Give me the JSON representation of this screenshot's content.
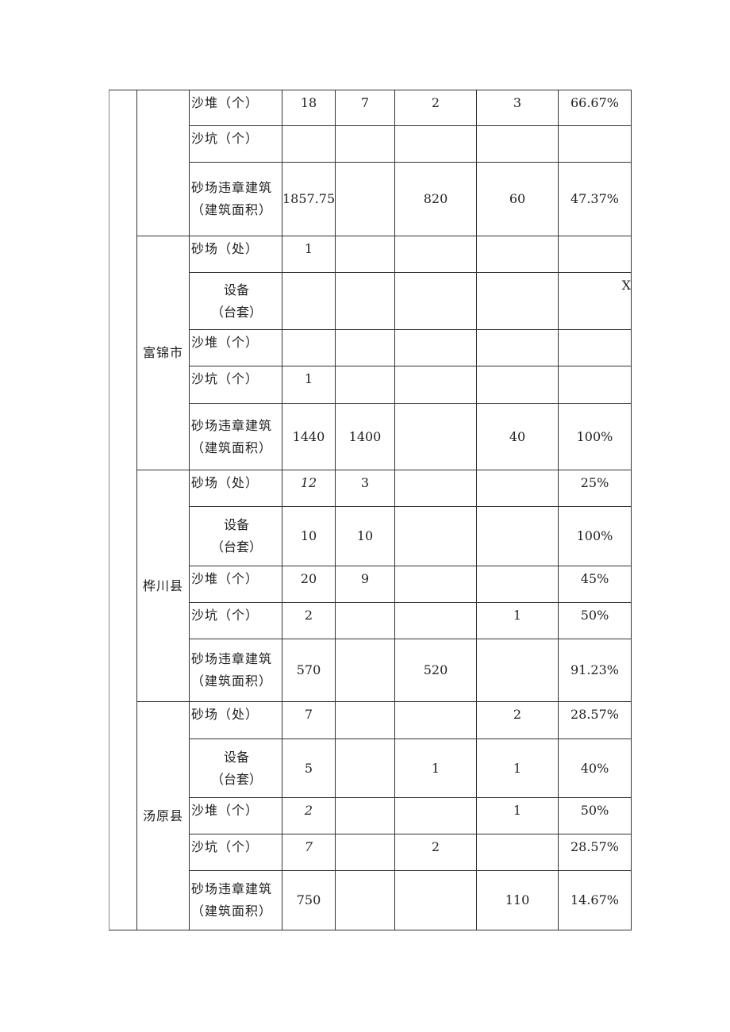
{
  "table": {
    "groups": [
      {
        "region": "",
        "rows": [
          {
            "label": "沙堆（个）",
            "values": [
              "18",
              "7",
              "2",
              "3",
              "66.67%"
            ]
          },
          {
            "label": "沙坑（个）",
            "values": [
              "",
              "",
              "",
              "",
              ""
            ]
          },
          {
            "label": "砂场违章建筑（建筑面积）",
            "label_lines": [
              "砂场违章建筑",
              "（建筑面积）"
            ],
            "values": [
              "1857.75",
              "",
              "820",
              "60",
              "47.37%"
            ]
          }
        ]
      },
      {
        "region": "富锦市",
        "rows": [
          {
            "label": "砂场（处）",
            "values": [
              "1",
              "",
              "",
              "",
              ""
            ]
          },
          {
            "label": "设备（台套）",
            "label_lines": [
              "设备",
              "（台套）"
            ],
            "values": [
              "",
              "",
              "",
              "",
              "X"
            ]
          },
          {
            "label": "沙堆（个）",
            "values": [
              "",
              "",
              "",
              "",
              ""
            ]
          },
          {
            "label": "沙坑（个）",
            "values": [
              "1",
              "",
              "",
              "",
              ""
            ]
          },
          {
            "label": "砂场违章建筑（建筑面积）",
            "label_lines": [
              "砂场违章建筑",
              "（建筑面积）"
            ],
            "values": [
              "1440",
              "1400",
              "",
              "40",
              "100%"
            ]
          }
        ]
      },
      {
        "region": "桦川县",
        "rows": [
          {
            "label": "砂场（处）",
            "values": [
              "12",
              "3",
              "",
              "",
              "25%"
            ]
          },
          {
            "label": "设备（台套）",
            "label_lines": [
              "设备",
              "（台套）"
            ],
            "values": [
              "10",
              "10",
              "",
              "",
              "100%"
            ]
          },
          {
            "label": "沙堆（个）",
            "values": [
              "20",
              "9",
              "",
              "",
              "45%"
            ]
          },
          {
            "label": "沙坑（个）",
            "values": [
              "2",
              "",
              "",
              "1",
              "50%"
            ]
          },
          {
            "label": "砂场违章建筑（建筑面积）",
            "label_lines": [
              "砂场违章建筑",
              "（建筑面积）"
            ],
            "values": [
              "570",
              "",
              "520",
              "",
              "91.23%"
            ]
          }
        ]
      },
      {
        "region": "汤原县",
        "rows": [
          {
            "label": "砂场（处）",
            "values": [
              "7",
              "",
              "",
              "2",
              "28.57%"
            ]
          },
          {
            "label": "设备（台套）",
            "label_lines": [
              "设备",
              "（台套）"
            ],
            "values": [
              "5",
              "",
              "1",
              "1",
              "40%"
            ]
          },
          {
            "label": "沙堆（个）",
            "values": [
              "2",
              "",
              "",
              "1",
              "50%"
            ]
          },
          {
            "label": "沙坑（个）",
            "values": [
              "7",
              "",
              "2",
              "",
              "28.57%"
            ]
          },
          {
            "label": "砂场违章建筑（建筑面积）",
            "label_lines": [
              "砂场违章建筑",
              "（建筑面积）"
            ],
            "values": [
              "750",
              "",
              "",
              "110",
              "14.67%"
            ]
          }
        ]
      }
    ]
  }
}
